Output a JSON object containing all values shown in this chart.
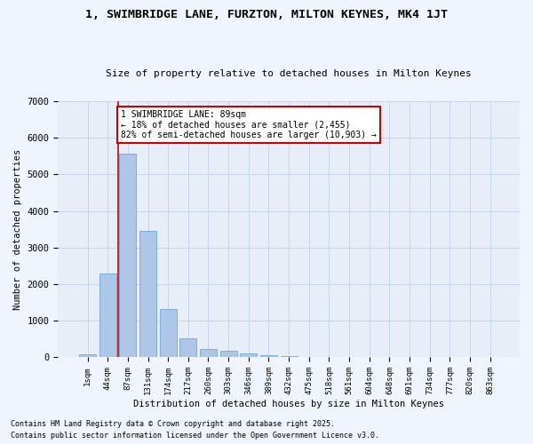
{
  "title": "1, SWIMBRIDGE LANE, FURZTON, MILTON KEYNES, MK4 1JT",
  "subtitle": "Size of property relative to detached houses in Milton Keynes",
  "xlabel": "Distribution of detached houses by size in Milton Keynes",
  "ylabel": "Number of detached properties",
  "categories": [
    "1sqm",
    "44sqm",
    "87sqm",
    "131sqm",
    "174sqm",
    "217sqm",
    "260sqm",
    "303sqm",
    "346sqm",
    "389sqm",
    "432sqm",
    "475sqm",
    "518sqm",
    "561sqm",
    "604sqm",
    "648sqm",
    "691sqm",
    "734sqm",
    "777sqm",
    "820sqm",
    "863sqm"
  ],
  "values": [
    80,
    2300,
    5560,
    3450,
    1320,
    530,
    220,
    185,
    100,
    60,
    30,
    10,
    5,
    3,
    2,
    1,
    1,
    1,
    0,
    0,
    0
  ],
  "bar_color": "#aec6e8",
  "bar_edge_color": "#5a9fd4",
  "annotation_label": "1 SWIMBRIDGE LANE: 89sqm",
  "annotation_line1": "← 18% of detached houses are smaller (2,455)",
  "annotation_line2": "82% of semi-detached houses are larger (10,903) →",
  "vline_color": "#cc0000",
  "annotation_box_color": "#ffffff",
  "annotation_box_edge_color": "#cc0000",
  "background_color": "#e8eef8",
  "grid_color": "#c8d4e8",
  "fig_background": "#f0f4fc",
  "ylim": [
    0,
    7000
  ],
  "footer1": "Contains HM Land Registry data © Crown copyright and database right 2025.",
  "footer2": "Contains public sector information licensed under the Open Government Licence v3.0."
}
